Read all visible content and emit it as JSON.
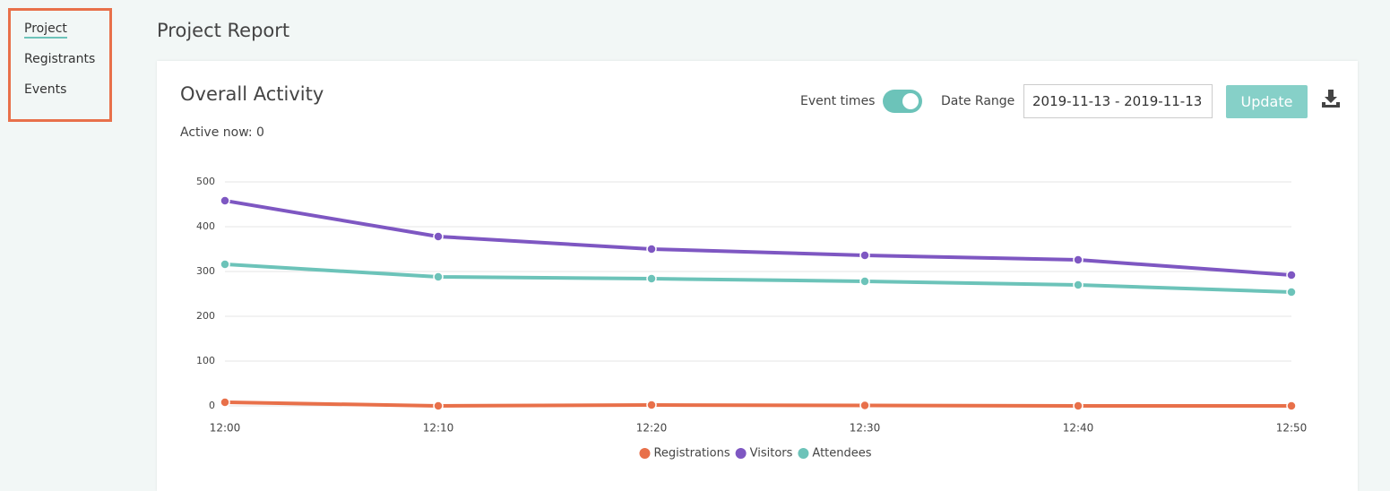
{
  "sidebar": {
    "items": [
      "Project",
      "Registrants",
      "Events"
    ]
  },
  "header": {
    "title": "Project Report"
  },
  "card": {
    "title": "Overall Activity",
    "active_now": "Active now: 0",
    "toggle_label": "Event times",
    "toggle_on": true,
    "date_range_label": "Date Range",
    "date_range_value": "2019-11-13 - 2019-11-13",
    "update_button": "Update"
  },
  "chart_data": {
    "type": "line",
    "categories": [
      "12:00",
      "12:10",
      "12:20",
      "12:30",
      "12:40",
      "12:50"
    ],
    "series": [
      {
        "name": "Registrations",
        "color": "#e8704a",
        "values": [
          8,
          0,
          2,
          1,
          0,
          0
        ]
      },
      {
        "name": "Visitors",
        "color": "#7e57c2",
        "values": [
          458,
          378,
          350,
          336,
          326,
          292
        ]
      },
      {
        "name": "Attendees",
        "color": "#6cc3b9",
        "values": [
          316,
          288,
          284,
          278,
          270,
          254
        ]
      }
    ],
    "ylim": [
      0,
      500
    ],
    "yticks": [
      0,
      100,
      200,
      300,
      400,
      500
    ],
    "grid": true,
    "legend": "bottom"
  }
}
